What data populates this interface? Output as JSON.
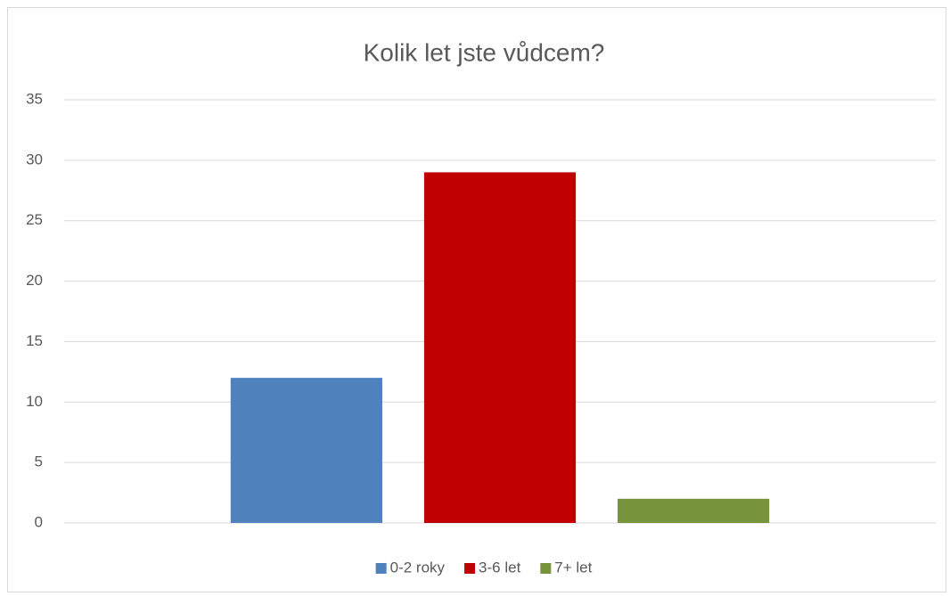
{
  "chart_data": {
    "type": "bar",
    "title": "Kolik let jste vůdcem?",
    "categories": [
      null
    ],
    "series": [
      {
        "name": "0-2 roky",
        "color": "#4f81bd",
        "values": [
          12
        ]
      },
      {
        "name": "3-6 let",
        "color": "#c00000",
        "values": [
          29
        ]
      },
      {
        "name": "7+ let",
        "color": "#77933c",
        "values": [
          2
        ]
      }
    ],
    "ylim": [
      0,
      35
    ],
    "yticks": [
      0,
      5,
      10,
      15,
      20,
      25,
      30,
      35
    ],
    "grid": true,
    "legend": "bottom"
  }
}
